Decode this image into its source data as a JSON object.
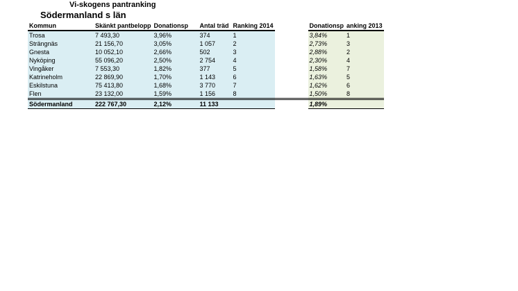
{
  "title": "Vi-skogens pantranking",
  "subtitle": "Södermanland s län",
  "colors": {
    "main_table_bg": "#daeef3",
    "ranking2013_bg": "#ebf1de"
  },
  "table": {
    "headers": {
      "kommun": "Kommun",
      "belopp": "Skänkt pantbelopp",
      "pct": "Donationsp",
      "trad": "Antal träd",
      "rank2014": "Ranking 2014",
      "pct2013": "Donationsp",
      "rank2013": "anking 2013"
    },
    "rows": [
      {
        "kommun": "Trosa",
        "belopp": "7 493,30",
        "pct": "3,96%",
        "trad": "374",
        "rank2014": "1",
        "pct2013": "3,84%",
        "rank2013": "1"
      },
      {
        "kommun": "Strängnäs",
        "belopp": "21 156,70",
        "pct": "3,05%",
        "trad": "1 057",
        "rank2014": "2",
        "pct2013": "2,73%",
        "rank2013": "3"
      },
      {
        "kommun": "Gnesta",
        "belopp": "10 052,10",
        "pct": "2,66%",
        "trad": "502",
        "rank2014": "3",
        "pct2013": "2,88%",
        "rank2013": "2"
      },
      {
        "kommun": "Nyköping",
        "belopp": "55 096,20",
        "pct": "2,50%",
        "trad": "2 754",
        "rank2014": "4",
        "pct2013": "2,30%",
        "rank2013": "4"
      },
      {
        "kommun": "Vingåker",
        "belopp": "7 553,30",
        "pct": "1,82%",
        "trad": "377",
        "rank2014": "5",
        "pct2013": "1,58%",
        "rank2013": "7"
      },
      {
        "kommun": "Katrineholm",
        "belopp": "22 869,90",
        "pct": "1,70%",
        "trad": "1 143",
        "rank2014": "6",
        "pct2013": "1,63%",
        "rank2013": "5"
      },
      {
        "kommun": "Eskilstuna",
        "belopp": "75 413,80",
        "pct": "1,68%",
        "trad": "3 770",
        "rank2014": "7",
        "pct2013": "1,62%",
        "rank2013": "6"
      },
      {
        "kommun": "Flen",
        "belopp": "23 132,00",
        "pct": "1,59%",
        "trad": "1 156",
        "rank2014": "8",
        "pct2013": "1,50%",
        "rank2013": "8"
      }
    ],
    "total": {
      "kommun": "Södermanland",
      "belopp": "222 767,30",
      "pct": "2,12%",
      "trad": "11 133",
      "rank2014": "",
      "pct2013": "1,89%",
      "rank2013": ""
    }
  }
}
